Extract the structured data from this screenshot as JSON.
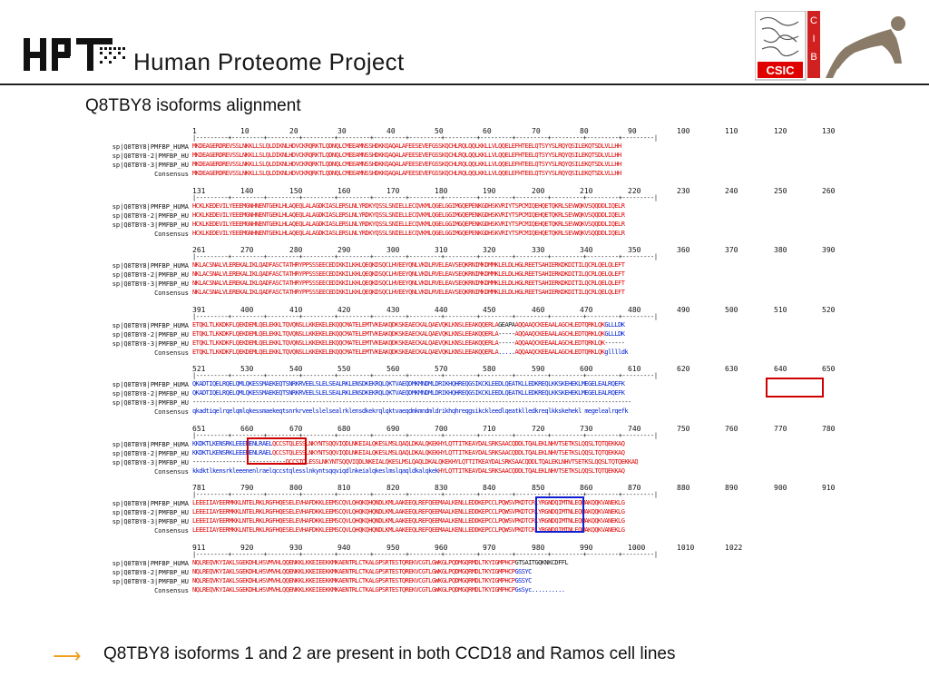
{
  "header": {
    "brand": "Human Proteome Project",
    "csic_label": "CSIC",
    "cib_label": "CIB"
  },
  "title": "Q8TBY8 isoforms alignment",
  "colors": {
    "match": "#e00000",
    "mismatch": "#0020d0",
    "box_red": "#d00000",
    "box_blue": "#1020d0",
    "arrow": "#f0a020"
  },
  "labels": [
    "sp|Q8TBY8|PMFBP_HUMA",
    "sp|Q8TBY8-2|PMFBP_HU",
    "sp|Q8TBY8-3|PMFBP_HU",
    "Consensus"
  ],
  "blocks": [
    {
      "ruler": [
        "1",
        "10",
        "20",
        "30",
        "40",
        "50",
        "60",
        "70",
        "80",
        "90",
        "100",
        "110",
        "120",
        "130"
      ],
      "rows": [
        [
          {
            "t": "MKDEAGERDREVSSLNKKLLSLQLDIKNLHDVCKRQRKTLQDNQLCMEEAMNSSHDKKQAQALAFEESEVEFGSSKQCHLRQLQQLKKLLVLQQELEFHTEELQTSYYSLRQYQSILEKQTSDLVLLHH",
            "c": "red"
          }
        ],
        [
          {
            "t": "MKDEAGERDREVSSLNKKLLSLQLDIKNLHDVCKRQRKTLQDNQLCMEEAMNSSHDKKQAQALAFEESEVEFGSSKQCHLRQLQQLKKLLVLQQELEFHTEELQTSYYSLRQYQSILEKQTSDLVLLHH",
            "c": "red"
          }
        ],
        [
          {
            "t": "MKDEAGERDREVSSLNKKLLSLQLDIKNLHDVCKRQRKTLQDNQLCMEEAMNSSHDKKQAQALAFEESEVEFGSSKQCHLRQLQQLKKLLVLQQELEFHTEELQTSYYSLRQYQSILEKQTSDLVLLHH",
            "c": "red"
          }
        ],
        [
          {
            "t": "MKDEAGERDREVSSLNKKLLSLQLDIKNLHDVCKRQRKTLQDNQLCMEEAMNSSHDKKQAQALAFEESEVEFGSSKQCHLRQLQQLKKLLVLQQELEFHTEELQTSYYSLRQYQSILEKQTSDLVLLHH",
            "c": "red"
          }
        ]
      ]
    },
    {
      "ruler": [
        "131",
        "140",
        "150",
        "160",
        "170",
        "180",
        "190",
        "200",
        "210",
        "220",
        "230",
        "240",
        "250",
        "260"
      ],
      "rows": [
        [
          {
            "t": "HCKLKEDEVILYEEEMGNHNENTGEKLHLAQEQLALAGDKIASLERSLNLYRDKYQSSLSNIELLECQVKMLQGELGGIMGQEPENKGDHSKVRIYTSPCMIQEHQETQKRLSEVWQKVSQQDDLIQELR",
            "c": "red"
          }
        ],
        [
          {
            "t": "HCKLKEDEVILYEEEMGNHNENTGEKLHLAQEQLALAGDKIASLERSLNLYRDKYQSSLSNIELLECQVKMLQGELGGIMGQEPENKGDHSKVRIYTSPCMIQEHQETQKRLSEVWQKVSQQDDLIQELR",
            "c": "red"
          }
        ],
        [
          {
            "t": "HCKLKEDEVILYEEEMGNHNENTGEKLHLAQEQLALAGDKIASLERSLNLYRDKYQSSLSNIELLECQVKMLQGELGGIMGQEPENKGDHSKVRIYTSPCMIQEHQETQKRLSEVWQKVSQQDDLIQELR",
            "c": "red"
          }
        ],
        [
          {
            "t": "HCKLKEDEVILYEEEMGNHNENTGEKLHLAQEQLALAGDKIASLERSLNLYRDKYQSSLSNIELLECQVKMLQGELGGIMGQEPENKGDHSKVRIYTSPCMIQEHQETQKRLSEVWQKVSQQDDLIQELR",
            "c": "red"
          }
        ]
      ]
    },
    {
      "ruler": [
        "261",
        "270",
        "280",
        "290",
        "300",
        "310",
        "320",
        "330",
        "340",
        "350",
        "360",
        "370",
        "380",
        "390"
      ],
      "rows": [
        [
          {
            "t": "NKLACSNALVLEREKALIKLQADFASCTATHRYPPSSSEECEDIKKILKHLQEQKDSQCLHVEEYQNLVKDLRVELEAVSEQKRNIMKDMMKLELDLHGLREETSAHIERKDKDITILQCRLQELQLEFT",
            "c": "red"
          }
        ],
        [
          {
            "t": "NKLACSNALVLEREKALIKLQADFASCTATHRYPPSSSEECEDIKKILKHLQEQKDSQCLHVEEYQNLVKDLRVELEAVSEQKRNIMKDMMKLELDLHGLREETSAHIERKDKDITILQCRLQELQLEFT",
            "c": "red"
          }
        ],
        [
          {
            "t": "NKLACSNALVLEREKALIKLQADFASCTATHRYPPSSSEECEDIKKILKHLQEQKDSQCLHVEEYQNLVKDLRVELEAVSEQKRNIMKDMMKLELDLHGLREETSAHIERKDKDITILQCRLQELQLEFT",
            "c": "red"
          }
        ],
        [
          {
            "t": "NKLACSNALVLEREKALIKLQADFASCTATHRYPPSSSEECEDIKKILKHLQEQKDSQCLHVEEYQNLVKDLRVELEAVSEQKRNIMKDMMKLELDLHGLREETSAHIERKDKDITILQCRLQELQLEFT",
            "c": "red"
          }
        ]
      ]
    },
    {
      "ruler": [
        "391",
        "400",
        "410",
        "420",
        "430",
        "440",
        "450",
        "460",
        "470",
        "480",
        "490",
        "500",
        "510",
        "520"
      ],
      "rows": [
        [
          {
            "t": "ETQKLTLKKDKFLQEKDEMLQELEKKLTQVQNSLLKKEKELEKQQCMATELEMTVKEAKQDKSKEAECKALQAEVQKLKNSLEEAKQQERLA",
            "c": "red"
          },
          {
            "t": "GEAPA",
            "c": "black"
          },
          {
            "t": "AQQAAQCKEEAALAGCHLEDTQRKLQK",
            "c": "red"
          },
          {
            "t": "GLLLDK",
            "c": "blue"
          }
        ],
        [
          {
            "t": "ETQKLTLKKDKFLQEKDEMLQELEKKLTQVQNSLLKKEKELEKQQCMATELEMTVKEAKQDKSKEAECKALQAEVQKLKNSLEEAKQQERLA",
            "c": "red"
          },
          {
            "t": "-----",
            "c": "black"
          },
          {
            "t": "AQQAAQCKEEAALAGCHLEDTQRKLQK",
            "c": "red"
          },
          {
            "t": "GLLLDK",
            "c": "blue"
          }
        ],
        [
          {
            "t": "ETQKLTLKKDKFLQEKDEMLQELEKKLTQVQNSLLKKEKELEKQQCMATELEMTVKEAKQDKSKEAECKALQAEVQKLKNSLEEAKQQERLA",
            "c": "red"
          },
          {
            "t": "-----",
            "c": "black"
          },
          {
            "t": "AQQAAQCKEEAALAGCHLEDTQRKLQK",
            "c": "red"
          },
          {
            "t": "------",
            "c": "black"
          }
        ],
        [
          {
            "t": "ETQKLTLKKDKFLQEKDEMLQELEKKLTQVQNSLLKKEKELEKQQCMATELEMTVKEAKQDKSKEAECKALQAEVQKLKNSLEEAKQQERLA",
            "c": "red"
          },
          {
            "t": ".....",
            "c": "blue"
          },
          {
            "t": "AQQAAQCKEEAALAGCHLEDTQRKLQK",
            "c": "red"
          },
          {
            "t": "glllldk",
            "c": "blue"
          }
        ]
      ]
    },
    {
      "ruler": [
        "521",
        "530",
        "540",
        "550",
        "560",
        "570",
        "580",
        "590",
        "600",
        "610",
        "620",
        "630",
        "640",
        "650"
      ],
      "rows": [
        [
          {
            "t": "QKADTIQELRQELQMLQKESSMAEKEQTSNRKRVEELSLELSEALRKLENSDKEKRQLQKTVAEQDMKMNDMLDRIKHQHREQGSIKCKLEEDLQEATKLLEDKREQLKKSKEHEKLMEGELEALRQEFK",
            "c": "blue"
          }
        ],
        [
          {
            "t": "QKADTIQELRQELQMLQKESSMAEKEQTSNRKRVEELSLELSEALRKLENSDKEKRQLQKTVAEQDMKMNDMLDRIKHQHREQGSIKCKLEEDLQEATKLLEDKREQLKKSKEHEKLMEGELEALRQEFK",
            "c": "blue"
          }
        ],
        [
          {
            "t": "------------------------------------------------------------------------------------------------------------------------------------",
            "c": "black"
          }
        ],
        [
          {
            "t": "qkadtiqelrqelqmlqkessmaekeqtsnrkrveelslelsealrklensdkekrqlqktvaeqdmkmndmldrikhqhreqgsikckleedlqeatklledkreqlkkskehekl megelealrqefk",
            "c": "blue"
          }
        ]
      ]
    },
    {
      "ruler": [
        "651",
        "660",
        "670",
        "680",
        "690",
        "700",
        "710",
        "720",
        "730",
        "740",
        "750",
        "760",
        "770",
        "780"
      ],
      "rows": [
        [
          {
            "t": "KKDKTLKENSRKLEEENENLRAEL",
            "c": "blue"
          },
          {
            "t": "QCCSTQLESSLNKYNTSQQVIQDLNKEIALQKESLMSLQAQLDKALQKEKHYLQTTITKEAYDALSRKSAACQDDLTQALEKLNHVTSETKSLQQSLTQTQEKKAQ",
            "c": "red"
          }
        ],
        [
          {
            "t": "KKDKTLKENSRKLEEENENLRAEL",
            "c": "blue"
          },
          {
            "t": "QCCSTQLESSLNKYNTSQQVIQDLNKEIALQKESLMSLQAQLDKALQKEKHYLQTTITKEAYDALSRKSAACQDDLTQALEKLNHVTSETKSLQQSLTQTQEKKAQ",
            "c": "red"
          }
        ],
        [
          {
            "t": "----------------------------",
            "c": "black"
          },
          {
            "t": "QCCSTQLESSLNKYNTSQQVIQDLNKEIALQKESLMSLQAQLDKALQKEKHYLQTTITKEAYDALSRKSAACQDDLTQALEKLNHVTSETKSLQQSLTQTQEKKAQ",
            "c": "red"
          }
        ],
        [
          {
            "t": "kkdktlkensrkleeenenlraelqccstqlesslnkyntsqqviqdlnkeialqkeslmslqaqldkalqkek",
            "c": "blue"
          },
          {
            "t": "HYLQTTITKEAYDALSRKSAACQDDLTQALEKLNHVTSETKSLQQSLTQTQEKKAQ",
            "c": "red"
          }
        ]
      ]
    },
    {
      "ruler": [
        "781",
        "790",
        "800",
        "810",
        "820",
        "830",
        "840",
        "850",
        "860",
        "870",
        "880",
        "890",
        "900",
        "910"
      ],
      "rows": [
        [
          {
            "t": "LEEEIIAYEERMKKLNTELRKLRGFHQESELEVHAFDKKLEEMSCQVLQHQKQHQNDLKMLAAKEEQLREFQEEMAALKENLLEDDKEPCCLPQWSVPKDTCRLYRGNDQIMTNLEQWAKQQKVANEKLG",
            "c": "red"
          }
        ],
        [
          {
            "t": "LEEEIIAYEERMKKLNTELRKLRGFHQESELEVHAFDKKLEEMSCQVLQHQKQHQNDLKMLAAKEEQLREFQEEMAALKENLLEDDKEPCCLPQWSVPKDTCRLYRGNDQIMTNLEQWAKQQKVANEKLG",
            "c": "red"
          }
        ],
        [
          {
            "t": "LEEEIIAYEERMKKLNTELRKLRGFHQESELEVHAFDKKLEEMSCQVLQHQKQHQNDLKMLAAKEEQLREFQEEMAALKENLLEDDKEPCCLPQWSVPKDTCRLYRGNDQIMTNLEQWAKQQKVANEKLG",
            "c": "red"
          }
        ],
        [
          {
            "t": "LEEEIIAYEERMKKLNTELRKLRGFHQESELEVHAFDKKLEEMSCQVLQHQKQHQNDLKMLAAKEEQLREFQEEMAALKENLLEDDKEPCCLPQWSVPKDTCRLYRGNDQIMTNLEQWAKQQKVANEKLG",
            "c": "red"
          }
        ]
      ]
    },
    {
      "ruler": [
        "911",
        "920",
        "930",
        "940",
        "950",
        "960",
        "970",
        "980",
        "990",
        "1000",
        "1010",
        "1022"
      ],
      "rows": [
        [
          {
            "t": "NQLREQVKYIAKLSGEKDHLHSVMVHLQQENKKLKKEIEEKKMKAENTRLCTKALGPSRTESTQREKVCGTLGWKGLPQDMGQRMDLTKYIGMPHCP",
            "c": "red"
          },
          {
            "t": "GTSAITGQKNKCDFFL",
            "c": "black"
          }
        ],
        [
          {
            "t": "NQLREQVKYIAKLSGEKDHLHSVMVHLQQENKKLKKEIEEKKMKAENTRLCTKALGPSRTESTQREKVCGTLGWKGLPQDMGQRMDLTKYIGMPHCP",
            "c": "red"
          },
          {
            "t": "GSSYC",
            "c": "blue"
          }
        ],
        [
          {
            "t": "NQLREQVKYIAKLSGEKDHLHSVMVHLQQENKKLKKEIEEKKMKAENTRLCTKALGPSRTESTQREKVCGTLGWKGLPQDMGQRMDLTKYIGMPHCP",
            "c": "red"
          },
          {
            "t": "GSSYC",
            "c": "blue"
          }
        ],
        [
          {
            "t": "NQLREQVKYIAKLSGEKDHLHSVMVHLQQENKKLKKEIEEKKMKAENTRLCTKALGPSRTESTQREKVCGTLGWKGLPQDMGQRMDLTKYIGMPHCP",
            "c": "red"
          },
          {
            "t": "GsSyc..........",
            "c": "blue"
          }
        ]
      ]
    }
  ],
  "footer": {
    "arrow": "⟶",
    "text": "Q8TBY8 isoforms 1 and 2 are present in both CCD18 and Ramos cell lines"
  }
}
